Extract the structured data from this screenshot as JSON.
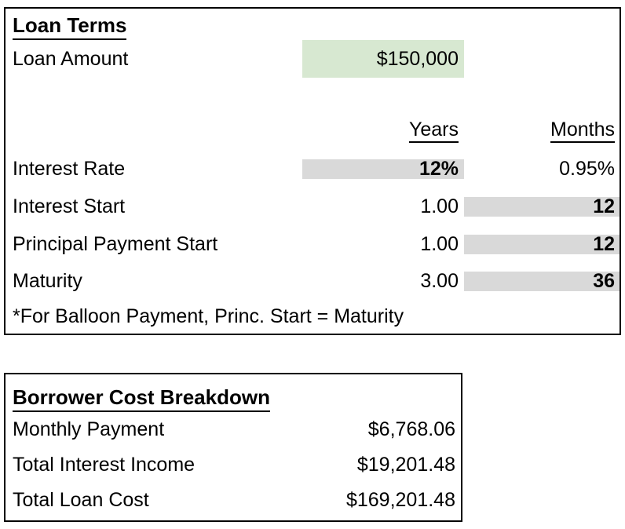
{
  "colors": {
    "highlight_green": "#d7e8d1",
    "highlight_gray": "#d9d9d9",
    "border": "#000000",
    "text": "#000000"
  },
  "loan_terms": {
    "title": "Loan Terms",
    "loan_amount_label": "Loan Amount",
    "loan_amount_value": "$150,000",
    "col_headers": {
      "years": "Years",
      "months": "Months"
    },
    "rows": [
      {
        "label": "Interest Rate",
        "years": "12%",
        "months": "0.95%"
      },
      {
        "label": "Interest Start",
        "years": "1.00",
        "months": "12"
      },
      {
        "label": "Principal Payment Start",
        "years": "1.00",
        "months": "12"
      },
      {
        "label": "Maturity",
        "years": "3.00",
        "months": "36"
      }
    ],
    "footnote": "*For Balloon Payment, Princ. Start = Maturity"
  },
  "borrower_cost": {
    "title": "Borrower Cost Breakdown",
    "rows": [
      {
        "label": "Monthly Payment",
        "value": "$6,768.06"
      },
      {
        "label": "Total Interest Income",
        "value": "$19,201.48"
      },
      {
        "label": "Total Loan Cost",
        "value": "$169,201.48"
      }
    ]
  }
}
